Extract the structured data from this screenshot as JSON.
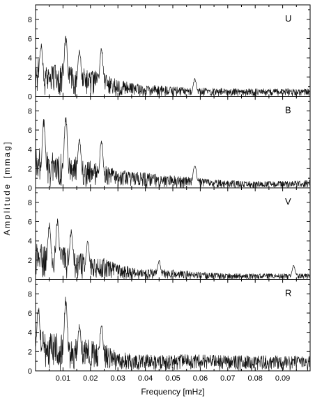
{
  "figure": {
    "ylabel": "Amplitude  [mmag]",
    "xlabel": "Frequency [mHz]"
  },
  "chart_data": [
    {
      "type": "line",
      "panel_label": "U",
      "x_range": [
        0,
        0.1
      ],
      "ylim": [
        0,
        9.5
      ],
      "yticks": [
        0,
        2,
        4,
        6,
        8
      ],
      "xticks": [
        0.01,
        0.02,
        0.03,
        0.04,
        0.05,
        0.06,
        0.07,
        0.08,
        0.09
      ],
      "xtick_labels": [],
      "grid": false,
      "envelope": {
        "x": [
          0,
          0.005,
          0.01,
          0.015,
          0.02,
          0.025,
          0.03,
          0.035,
          0.04,
          0.05,
          0.06,
          0.07,
          0.08,
          0.09,
          0.1
        ],
        "max": [
          4.0,
          3.6,
          3.4,
          3.0,
          2.8,
          2.4,
          1.8,
          1.4,
          1.2,
          1.0,
          0.9,
          0.85,
          0.8,
          0.8,
          0.8
        ]
      },
      "peaks": [
        [
          0.002,
          5.8
        ],
        [
          0.011,
          6.4
        ],
        [
          0.016,
          5.2
        ],
        [
          0.024,
          5.4
        ],
        [
          0.058,
          1.9
        ]
      ]
    },
    {
      "type": "line",
      "panel_label": "B",
      "x_range": [
        0,
        0.1
      ],
      "ylim": [
        0,
        9.5
      ],
      "yticks": [
        0,
        2,
        4,
        6,
        8
      ],
      "xticks": [
        0.01,
        0.02,
        0.03,
        0.04,
        0.05,
        0.06,
        0.07,
        0.08,
        0.09
      ],
      "xtick_labels": [],
      "grid": false,
      "envelope": {
        "x": [
          0,
          0.005,
          0.01,
          0.015,
          0.02,
          0.025,
          0.03,
          0.035,
          0.04,
          0.05,
          0.06,
          0.07,
          0.08,
          0.09,
          0.1
        ],
        "max": [
          4.4,
          3.8,
          3.6,
          3.2,
          2.8,
          2.3,
          1.9,
          1.7,
          1.6,
          1.3,
          1.0,
          0.8,
          0.7,
          0.7,
          0.8
        ]
      },
      "peaks": [
        [
          0.003,
          7.4
        ],
        [
          0.011,
          7.6
        ],
        [
          0.016,
          5.4
        ],
        [
          0.024,
          5.2
        ],
        [
          0.058,
          2.6
        ]
      ]
    },
    {
      "type": "line",
      "panel_label": "V",
      "x_range": [
        0,
        0.1
      ],
      "ylim": [
        0,
        9.5
      ],
      "yticks": [
        0,
        2,
        4,
        6,
        8
      ],
      "xticks": [
        0.01,
        0.02,
        0.03,
        0.04,
        0.05,
        0.06,
        0.07,
        0.08,
        0.09
      ],
      "xtick_labels": [],
      "grid": false,
      "envelope": {
        "x": [
          0,
          0.005,
          0.01,
          0.015,
          0.02,
          0.025,
          0.03,
          0.035,
          0.04,
          0.05,
          0.06,
          0.07,
          0.08,
          0.09,
          0.1
        ],
        "max": [
          3.8,
          3.6,
          3.4,
          3.0,
          2.6,
          2.2,
          1.6,
          1.3,
          1.1,
          1.0,
          0.8,
          0.6,
          0.6,
          0.6,
          0.6
        ]
      },
      "peaks": [
        [
          0.005,
          6.0
        ],
        [
          0.008,
          6.6
        ],
        [
          0.013,
          5.4
        ],
        [
          0.019,
          4.2
        ],
        [
          0.045,
          2.0
        ],
        [
          0.094,
          1.5
        ]
      ]
    },
    {
      "type": "line",
      "panel_label": "R",
      "x_range": [
        0,
        0.1
      ],
      "ylim": [
        0,
        9.5
      ],
      "yticks": [
        0,
        2,
        4,
        6,
        8
      ],
      "xticks": [
        0.01,
        0.02,
        0.03,
        0.04,
        0.05,
        0.06,
        0.07,
        0.08,
        0.09
      ],
      "xtick_labels": [
        "0.01",
        "0.02",
        "0.03",
        "0.04",
        "0.05",
        "0.06",
        "0.07",
        "0.08",
        "0.09"
      ],
      "grid": false,
      "envelope": {
        "x": [
          0,
          0.005,
          0.01,
          0.015,
          0.02,
          0.025,
          0.03,
          0.035,
          0.04,
          0.05,
          0.06,
          0.07,
          0.08,
          0.09,
          0.1
        ],
        "max": [
          4.6,
          4.0,
          3.9,
          3.5,
          3.2,
          2.8,
          2.0,
          1.8,
          1.7,
          1.7,
          1.7,
          1.6,
          1.6,
          1.6,
          1.6
        ]
      },
      "peaks": [
        [
          0.001,
          7.0
        ],
        [
          0.011,
          7.8
        ],
        [
          0.016,
          5.0
        ],
        [
          0.024,
          5.0
        ]
      ]
    }
  ]
}
